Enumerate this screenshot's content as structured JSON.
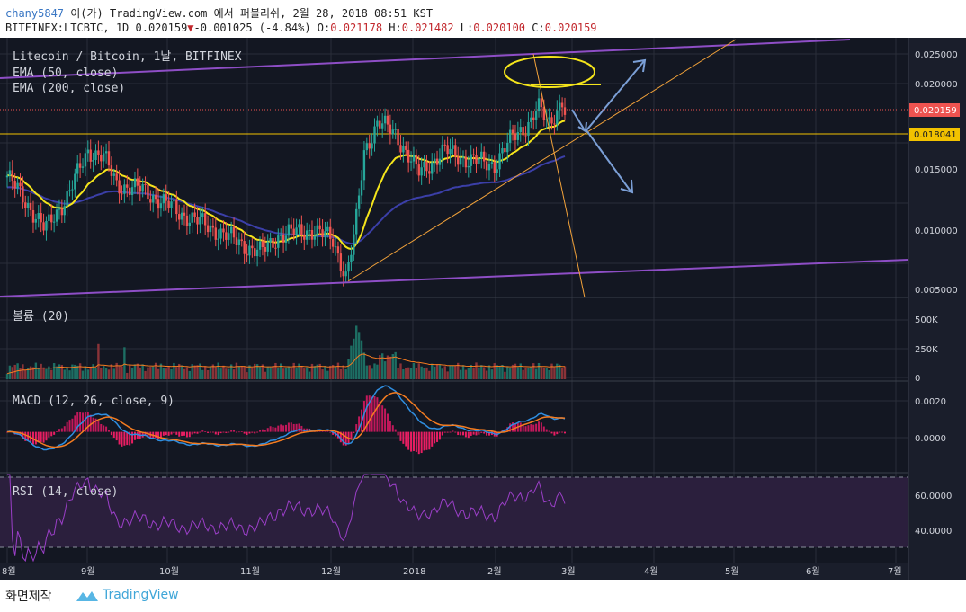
{
  "header": {
    "author": "chany5847",
    "line1_rest": " 이(가) TradingView.com 에서 퍼블리쉬, 2월 28, 2018 08:51 KST",
    "symbol_prefix": "BITFINEX:LTCBTC, 1D 0.020159",
    "change_arrow": "▼",
    "change": "-0.001025 (-4.84%)",
    "o_label": " O:",
    "o": "0.021178",
    "h_label": " H:",
    "h": "0.021482",
    "l_label": " L:",
    "l": "0.020100",
    "c_label": " C:",
    "c": "0.020159"
  },
  "legend": {
    "title": "Litecoin / Bitcoin, 1날, BITFINEX",
    "ema50": "EMA (50, close)",
    "ema200": "EMA (200, close)",
    "volume": "볼륨 (20)",
    "macd": "MACD (12, 26, close, 9)",
    "rsi": "RSI (14, close)"
  },
  "colors": {
    "background": "#131722",
    "grid": "#2a2e39",
    "up": "#26a69a",
    "down": "#ef5350",
    "ema50": "#f5e51b",
    "ema200": "#3b3fa8",
    "channel": "#8e4ec6",
    "trend": "#f2a23a",
    "arrow": "#7b9fd6",
    "macd": "#2f8ee0",
    "signal": "#f57c20",
    "rsi": "#9b3fc8"
  },
  "price_axis": {
    "ticks": [
      "0.025000",
      "0.020000",
      "0.015000",
      "0.010000",
      "0.005000"
    ],
    "last_price": "0.020159",
    "level": "0.018041"
  },
  "volume_axis": {
    "ticks": [
      "500K",
      "250K",
      "0"
    ]
  },
  "macd_axis": {
    "ticks": [
      "0.0020",
      "0.0000"
    ]
  },
  "rsi_axis": {
    "ticks": [
      "60.0000",
      "40.0000"
    ]
  },
  "time_axis": [
    "8월",
    "9월",
    "10월",
    "11월",
    "12월",
    "2018",
    "2월",
    "3월",
    "4월",
    "5월",
    "6월",
    "7월"
  ],
  "footer": {
    "made_with": "화면제작",
    "brand": "TradingView"
  },
  "chart_data": {
    "type": "candlestick",
    "symbol": "LTCBTC",
    "interval": "1D",
    "price_range": [
      0.0042,
      0.0265
    ],
    "monthly_closes": [
      {
        "month": "8월",
        "close": 0.0115
      },
      {
        "month": "9월",
        "close": 0.0125
      },
      {
        "month": "10월",
        "close": 0.0093
      },
      {
        "month": "11월",
        "close": 0.0095
      },
      {
        "month": "12월",
        "close": 0.019
      },
      {
        "month": "2018",
        "close": 0.016
      },
      {
        "month": "2월",
        "close": 0.0202
      }
    ],
    "last": 0.020159,
    "horizontal_level": 0.018041,
    "volume_range": [
      0,
      850000
    ],
    "macd_range": [
      -0.0024,
      0.0028
    ],
    "rsi_range": [
      18,
      75
    ],
    "rsi_bands": [
      70,
      30
    ]
  }
}
